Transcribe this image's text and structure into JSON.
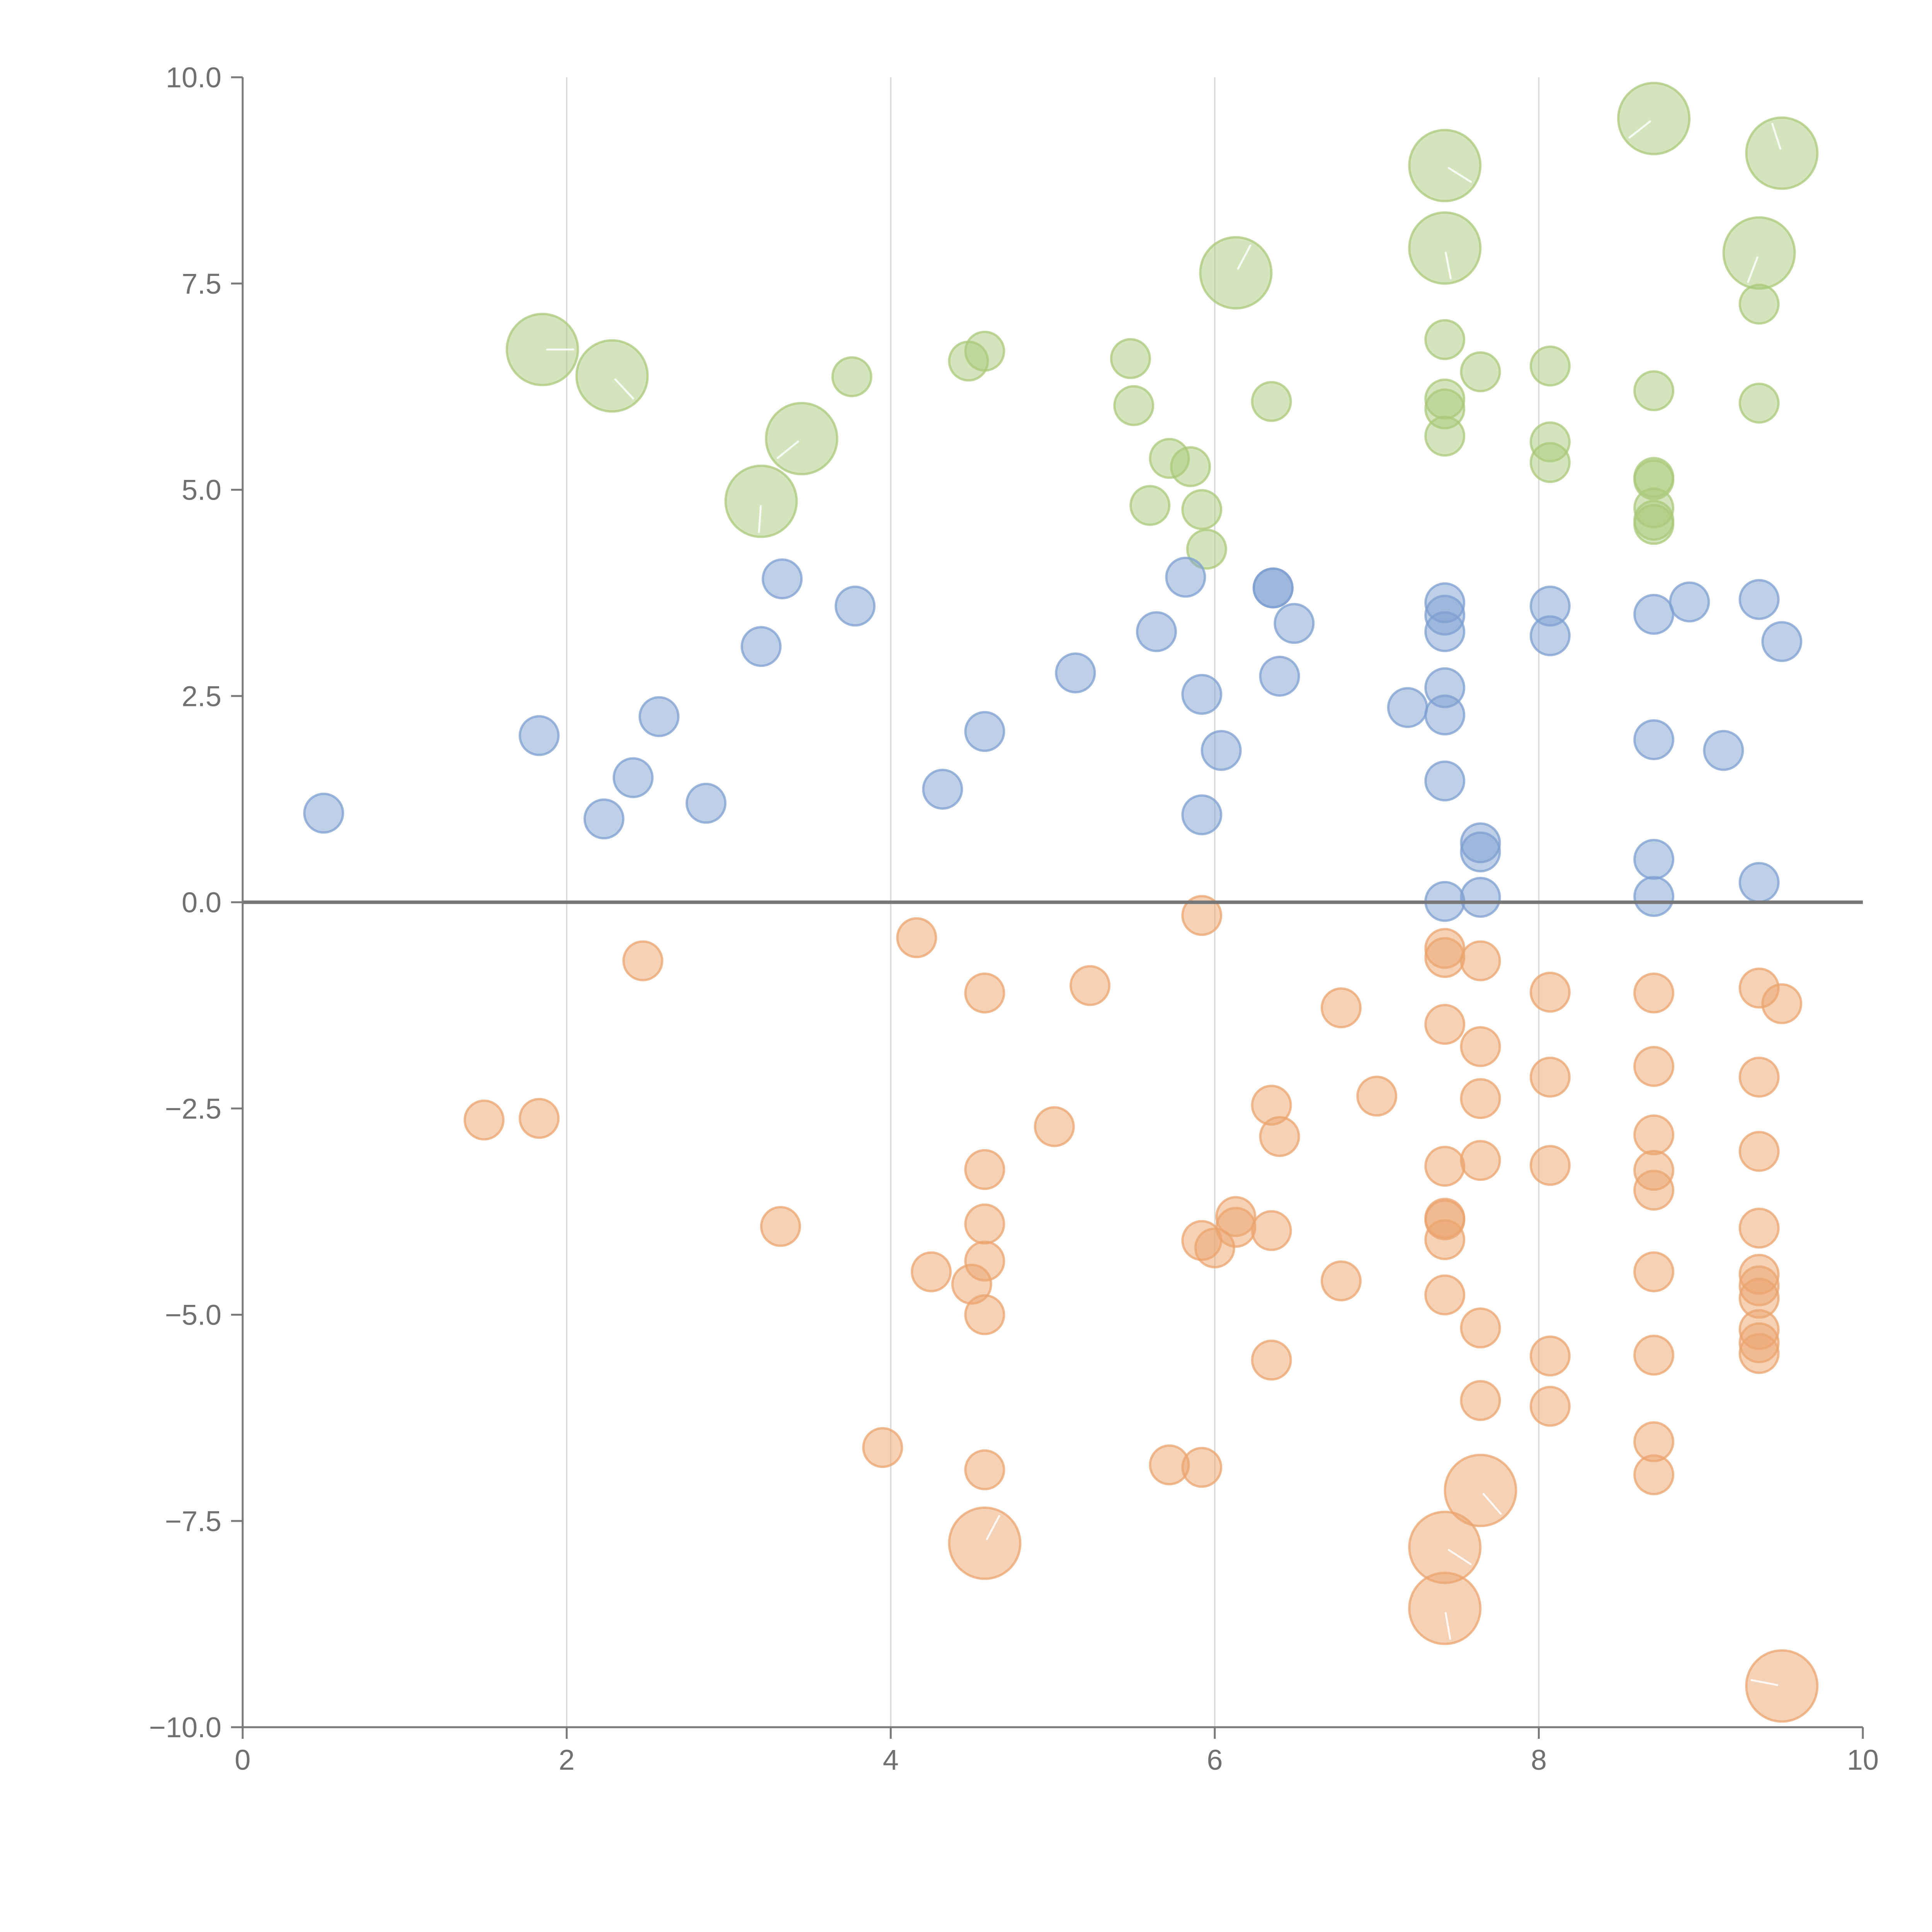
{
  "chart_data": {
    "type": "scatter",
    "title": "",
    "xlabel": "",
    "ylabel": "",
    "xlim": [
      0,
      10
    ],
    "ylim": [
      -10,
      10
    ],
    "x_ticks": [
      0,
      2,
      4,
      6,
      8,
      10
    ],
    "x_tick_labels": [
      "0",
      "2",
      "4",
      "6",
      "8",
      "10"
    ],
    "y_ticks": [
      -10,
      -7.5,
      -5,
      -2.5,
      0,
      2.5,
      5,
      7.5,
      10
    ],
    "y_tick_labels": [
      "−10.0",
      "−7.5",
      "−5.0",
      "−2.5",
      "0.0",
      "2.5",
      "5.0",
      "7.5",
      "10.0"
    ],
    "grid": "vertical lines at x ticks 2, 4, 6, 8",
    "reference_line_y": 0,
    "legend": "none",
    "series": [
      {
        "name": "green",
        "color": "#a9c97a",
        "points": [
          {
            "x": 1.85,
            "y": 6.7,
            "s": 3
          },
          {
            "x": 2.28,
            "y": 6.38,
            "s": 3
          },
          {
            "x": 3.2,
            "y": 4.86,
            "s": 3
          },
          {
            "x": 3.45,
            "y": 5.62,
            "s": 3
          },
          {
            "x": 3.76,
            "y": 6.37,
            "s": 1
          },
          {
            "x": 4.48,
            "y": 6.56,
            "s": 1
          },
          {
            "x": 4.58,
            "y": 6.68,
            "s": 1
          },
          {
            "x": 5.48,
            "y": 6.59,
            "s": 1
          },
          {
            "x": 5.5,
            "y": 6.02,
            "s": 1
          },
          {
            "x": 5.6,
            "y": 4.81,
            "s": 1
          },
          {
            "x": 5.72,
            "y": 5.38,
            "s": 1
          },
          {
            "x": 5.85,
            "y": 5.28,
            "s": 1
          },
          {
            "x": 5.92,
            "y": 4.76,
            "s": 1
          },
          {
            "x": 5.95,
            "y": 4.28,
            "s": 1
          },
          {
            "x": 6.13,
            "y": 7.63,
            "s": 3
          },
          {
            "x": 6.35,
            "y": 6.07,
            "s": 1
          },
          {
            "x": 7.42,
            "y": 8.93,
            "s": 3
          },
          {
            "x": 7.42,
            "y": 7.93,
            "s": 3
          },
          {
            "x": 7.42,
            "y": 6.82,
            "s": 1
          },
          {
            "x": 7.42,
            "y": 6.1,
            "s": 1
          },
          {
            "x": 7.42,
            "y": 5.98,
            "s": 1
          },
          {
            "x": 7.42,
            "y": 5.65,
            "s": 1
          },
          {
            "x": 7.64,
            "y": 6.43,
            "s": 1
          },
          {
            "x": 8.07,
            "y": 6.5,
            "s": 1
          },
          {
            "x": 8.07,
            "y": 5.58,
            "s": 1
          },
          {
            "x": 8.07,
            "y": 5.33,
            "s": 1
          },
          {
            "x": 8.71,
            "y": 9.5,
            "s": 3
          },
          {
            "x": 8.71,
            "y": 6.2,
            "s": 1
          },
          {
            "x": 8.71,
            "y": 5.15,
            "s": 1
          },
          {
            "x": 8.71,
            "y": 5.12,
            "s": 1
          },
          {
            "x": 8.71,
            "y": 4.78,
            "s": 1
          },
          {
            "x": 8.71,
            "y": 4.63,
            "s": 1
          },
          {
            "x": 8.71,
            "y": 4.58,
            "s": 1
          },
          {
            "x": 9.36,
            "y": 7.87,
            "s": 3
          },
          {
            "x": 9.36,
            "y": 7.25,
            "s": 1
          },
          {
            "x": 9.36,
            "y": 6.05,
            "s": 1
          },
          {
            "x": 9.5,
            "y": 9.08,
            "s": 3
          }
        ]
      },
      {
        "name": "blue",
        "color": "#7e9fd2",
        "points": [
          {
            "x": 0.5,
            "y": 1.08,
            "s": 1
          },
          {
            "x": 1.83,
            "y": 2.02,
            "s": 1
          },
          {
            "x": 2.23,
            "y": 1.01,
            "s": 1
          },
          {
            "x": 2.41,
            "y": 1.51,
            "s": 1
          },
          {
            "x": 2.57,
            "y": 2.25,
            "s": 1
          },
          {
            "x": 2.86,
            "y": 1.2,
            "s": 1
          },
          {
            "x": 3.2,
            "y": 3.1,
            "s": 1
          },
          {
            "x": 3.33,
            "y": 3.92,
            "s": 1
          },
          {
            "x": 3.78,
            "y": 3.59,
            "s": 1
          },
          {
            "x": 4.32,
            "y": 1.37,
            "s": 1
          },
          {
            "x": 4.58,
            "y": 2.07,
            "s": 1
          },
          {
            "x": 5.14,
            "y": 2.78,
            "s": 1
          },
          {
            "x": 5.64,
            "y": 3.28,
            "s": 1
          },
          {
            "x": 5.82,
            "y": 3.94,
            "s": 1
          },
          {
            "x": 5.92,
            "y": 2.52,
            "s": 1
          },
          {
            "x": 5.92,
            "y": 1.06,
            "s": 1
          },
          {
            "x": 6.04,
            "y": 1.84,
            "s": 1
          },
          {
            "x": 6.36,
            "y": 3.81,
            "s": 1
          },
          {
            "x": 6.36,
            "y": 3.81,
            "s": 1
          },
          {
            "x": 6.4,
            "y": 2.74,
            "s": 1
          },
          {
            "x": 6.49,
            "y": 3.38,
            "s": 1
          },
          {
            "x": 7.19,
            "y": 2.36,
            "s": 1
          },
          {
            "x": 7.42,
            "y": 3.63,
            "s": 1
          },
          {
            "x": 7.42,
            "y": 3.48,
            "s": 1
          },
          {
            "x": 7.42,
            "y": 3.28,
            "s": 1
          },
          {
            "x": 7.42,
            "y": 2.6,
            "s": 1
          },
          {
            "x": 7.42,
            "y": 2.27,
            "s": 1
          },
          {
            "x": 7.42,
            "y": 1.47,
            "s": 1
          },
          {
            "x": 7.42,
            "y": 0.01,
            "s": 1
          },
          {
            "x": 7.64,
            "y": 0.72,
            "s": 1
          },
          {
            "x": 7.64,
            "y": 0.61,
            "s": 1
          },
          {
            "x": 7.64,
            "y": 0.06,
            "s": 1
          },
          {
            "x": 8.07,
            "y": 3.59,
            "s": 1
          },
          {
            "x": 8.07,
            "y": 3.23,
            "s": 1
          },
          {
            "x": 8.71,
            "y": 3.49,
            "s": 1
          },
          {
            "x": 8.71,
            "y": 1.97,
            "s": 1
          },
          {
            "x": 8.71,
            "y": 0.52,
            "s": 1
          },
          {
            "x": 8.71,
            "y": 0.07,
            "s": 1
          },
          {
            "x": 8.93,
            "y": 3.64,
            "s": 1
          },
          {
            "x": 9.14,
            "y": 1.84,
            "s": 1
          },
          {
            "x": 9.36,
            "y": 3.67,
            "s": 1
          },
          {
            "x": 9.36,
            "y": 0.24,
            "s": 1
          },
          {
            "x": 9.5,
            "y": 3.16,
            "s": 1
          }
        ]
      },
      {
        "name": "orange",
        "color": "#eba46d",
        "points": [
          {
            "x": 1.49,
            "y": -2.64,
            "s": 1
          },
          {
            "x": 1.83,
            "y": -2.62,
            "s": 1
          },
          {
            "x": 2.47,
            "y": -0.71,
            "s": 1
          },
          {
            "x": 3.32,
            "y": -3.93,
            "s": 1
          },
          {
            "x": 3.95,
            "y": -6.61,
            "s": 1
          },
          {
            "x": 4.16,
            "y": -0.43,
            "s": 1
          },
          {
            "x": 4.25,
            "y": -4.48,
            "s": 1
          },
          {
            "x": 4.5,
            "y": -4.63,
            "s": 1
          },
          {
            "x": 4.58,
            "y": -1.1,
            "s": 1
          },
          {
            "x": 4.58,
            "y": -3.24,
            "s": 1
          },
          {
            "x": 4.58,
            "y": -3.9,
            "s": 1
          },
          {
            "x": 4.58,
            "y": -4.35,
            "s": 1
          },
          {
            "x": 4.58,
            "y": -5.0,
            "s": 1
          },
          {
            "x": 4.58,
            "y": -6.88,
            "s": 1
          },
          {
            "x": 4.58,
            "y": -7.77,
            "s": 3
          },
          {
            "x": 5.01,
            "y": -2.72,
            "s": 1
          },
          {
            "x": 5.23,
            "y": -1.01,
            "s": 1
          },
          {
            "x": 5.72,
            "y": -6.82,
            "s": 1
          },
          {
            "x": 5.92,
            "y": -0.16,
            "s": 1
          },
          {
            "x": 5.92,
            "y": -4.1,
            "s": 1
          },
          {
            "x": 5.92,
            "y": -6.85,
            "s": 1
          },
          {
            "x": 6.0,
            "y": -4.19,
            "s": 1
          },
          {
            "x": 6.13,
            "y": -3.81,
            "s": 1
          },
          {
            "x": 6.13,
            "y": -3.94,
            "s": 1
          },
          {
            "x": 6.35,
            "y": -2.46,
            "s": 1
          },
          {
            "x": 6.35,
            "y": -3.98,
            "s": 1
          },
          {
            "x": 6.35,
            "y": -5.55,
            "s": 1
          },
          {
            "x": 6.4,
            "y": -2.84,
            "s": 1
          },
          {
            "x": 6.78,
            "y": -1.28,
            "s": 1
          },
          {
            "x": 6.78,
            "y": -4.59,
            "s": 1
          },
          {
            "x": 7.0,
            "y": -2.35,
            "s": 1
          },
          {
            "x": 7.42,
            "y": -0.56,
            "s": 1
          },
          {
            "x": 7.42,
            "y": -0.67,
            "s": 1
          },
          {
            "x": 7.42,
            "y": -1.48,
            "s": 1
          },
          {
            "x": 7.42,
            "y": -3.2,
            "s": 1
          },
          {
            "x": 7.42,
            "y": -3.83,
            "s": 1
          },
          {
            "x": 7.42,
            "y": -3.85,
            "s": 1
          },
          {
            "x": 7.42,
            "y": -4.09,
            "s": 1
          },
          {
            "x": 7.42,
            "y": -4.76,
            "s": 1
          },
          {
            "x": 7.42,
            "y": -7.82,
            "s": 3
          },
          {
            "x": 7.42,
            "y": -8.56,
            "s": 3
          },
          {
            "x": 7.64,
            "y": -0.71,
            "s": 1
          },
          {
            "x": 7.64,
            "y": -1.75,
            "s": 1
          },
          {
            "x": 7.64,
            "y": -2.38,
            "s": 1
          },
          {
            "x": 7.64,
            "y": -3.13,
            "s": 1
          },
          {
            "x": 7.64,
            "y": -5.16,
            "s": 1
          },
          {
            "x": 7.64,
            "y": -6.04,
            "s": 1
          },
          {
            "x": 7.64,
            "y": -7.13,
            "s": 3
          },
          {
            "x": 8.07,
            "y": -1.09,
            "s": 1
          },
          {
            "x": 8.07,
            "y": -2.12,
            "s": 1
          },
          {
            "x": 8.07,
            "y": -3.19,
            "s": 1
          },
          {
            "x": 8.07,
            "y": -5.5,
            "s": 1
          },
          {
            "x": 8.07,
            "y": -6.11,
            "s": 1
          },
          {
            "x": 8.71,
            "y": -1.1,
            "s": 1
          },
          {
            "x": 8.71,
            "y": -1.99,
            "s": 1
          },
          {
            "x": 8.71,
            "y": -2.82,
            "s": 1
          },
          {
            "x": 8.71,
            "y": -3.25,
            "s": 1
          },
          {
            "x": 8.71,
            "y": -3.49,
            "s": 1
          },
          {
            "x": 8.71,
            "y": -4.48,
            "s": 1
          },
          {
            "x": 8.71,
            "y": -5.49,
            "s": 1
          },
          {
            "x": 8.71,
            "y": -6.54,
            "s": 1
          },
          {
            "x": 8.71,
            "y": -6.94,
            "s": 1
          },
          {
            "x": 9.36,
            "y": -1.04,
            "s": 1
          },
          {
            "x": 9.36,
            "y": -2.12,
            "s": 1
          },
          {
            "x": 9.36,
            "y": -3.02,
            "s": 1
          },
          {
            "x": 9.36,
            "y": -3.95,
            "s": 1
          },
          {
            "x": 9.36,
            "y": -4.51,
            "s": 1
          },
          {
            "x": 9.36,
            "y": -4.65,
            "s": 1
          },
          {
            "x": 9.36,
            "y": -4.8,
            "s": 1
          },
          {
            "x": 9.36,
            "y": -5.18,
            "s": 1
          },
          {
            "x": 9.36,
            "y": -5.34,
            "s": 1
          },
          {
            "x": 9.36,
            "y": -5.47,
            "s": 1
          },
          {
            "x": 9.5,
            "y": -1.23,
            "s": 1
          },
          {
            "x": 9.5,
            "y": -9.5,
            "s": 3
          }
        ]
      }
    ]
  }
}
